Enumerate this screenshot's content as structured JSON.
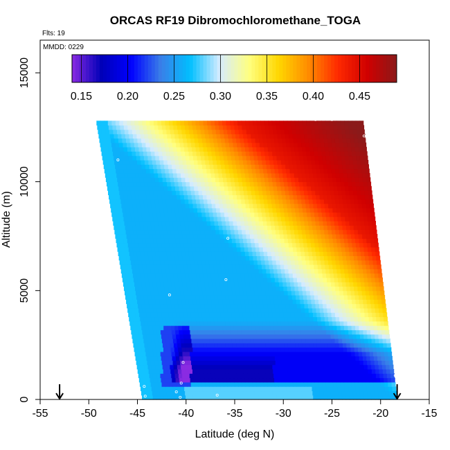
{
  "chart_data": {
    "type": "heatmap",
    "title": "ORCAS RF19 Dibromochloromethane_TOGA",
    "flight_label": "Flts: 19",
    "date_label": "MMDD: 0229",
    "xlabel": "Latitude (deg N)",
    "ylabel": "Altitude (m)",
    "xlim": [
      -55,
      -15
    ],
    "ylim": [
      0,
      16500
    ],
    "x_ticks": [
      -55,
      -50,
      -45,
      -40,
      -35,
      -30,
      -25,
      -20,
      -15
    ],
    "y_ticks": [
      0,
      5000,
      10000,
      15000
    ],
    "colorbar": {
      "min": 0.14,
      "max": 0.49,
      "ticks": [
        0.15,
        0.2,
        0.25,
        0.3,
        0.35,
        0.4,
        0.45
      ],
      "tick_labels": [
        "0.15",
        "0.20",
        "0.25",
        "0.30",
        "0.35",
        "0.40",
        "0.45"
      ],
      "colors": [
        "#8a2be2",
        "#0000b8",
        "#0000ff",
        "#3a7ee8",
        "#00bfff",
        "#d6ecff",
        "#ffff80",
        "#ffd700",
        "#ff8c00",
        "#ff2a00",
        "#d00000",
        "#8b1a1a"
      ]
    },
    "arrows_latitude": [
      -53,
      -18.3
    ],
    "field": {
      "description_values": "interpolated concentration field",
      "bottom_lat_range": [
        -44.5,
        -19
      ],
      "top_lat_range": [
        -49,
        -22
      ],
      "alt_range": [
        0,
        12800
      ]
    },
    "sample_points": [
      {
        "lat": -47,
        "alt": 11000
      },
      {
        "lat": -35.7,
        "alt": 7400
      },
      {
        "lat": -35.9,
        "alt": 5500
      },
      {
        "lat": -41.7,
        "alt": 4800
      },
      {
        "lat": -18.9,
        "alt": 3800
      },
      {
        "lat": -18.5,
        "alt": 1900
      },
      {
        "lat": -40.3,
        "alt": 1700
      },
      {
        "lat": -40.5,
        "alt": 750
      },
      {
        "lat": -44.3,
        "alt": 600
      },
      {
        "lat": -44.2,
        "alt": 150
      },
      {
        "lat": -41.0,
        "alt": 350
      },
      {
        "lat": -36.8,
        "alt": 200
      },
      {
        "lat": -40.6,
        "alt": 100
      },
      {
        "lat": -21.7,
        "alt": 12100
      },
      {
        "lat": -26.7,
        "alt": 12850
      },
      {
        "lat": -25.0,
        "alt": 12850
      },
      {
        "lat": -18.5,
        "alt": 1100
      }
    ]
  }
}
